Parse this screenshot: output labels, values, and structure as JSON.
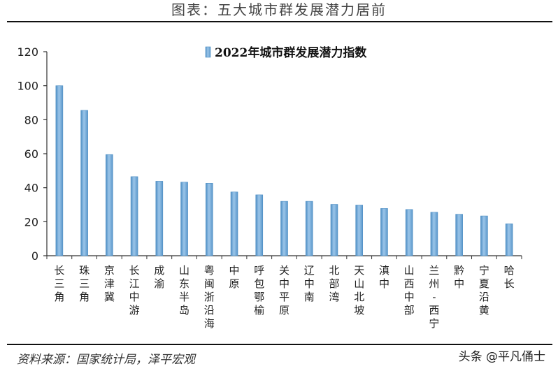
{
  "header": {
    "title": "图表：五大城市群发展潜力居前"
  },
  "footer": {
    "source": "资料来源：国家统计局，泽平宏观",
    "watermark": "头条 @平凡俑士"
  },
  "chart_data": {
    "type": "bar",
    "title": "",
    "xlabel": "",
    "ylabel": "",
    "ylim": [
      0,
      120
    ],
    "yticks": [
      0,
      20,
      40,
      60,
      80,
      100,
      120
    ],
    "legend": "top-center",
    "grid": false,
    "bar_color": "#6FA8D6",
    "categories": [
      "长三角",
      "珠三角",
      "京津冀",
      "长江中游",
      "成渝",
      "山东半岛",
      "粤闽浙沿海",
      "中原",
      "呼包鄂榆",
      "关中平原",
      "辽中南",
      "北部湾",
      "天山北坡",
      "滇中",
      "山西中部",
      "兰州-西宁",
      "黔中",
      "宁夏沿黄",
      "哈长"
    ],
    "series": [
      {
        "name": "2022年城市群发展潜力指数",
        "values": [
          100,
          85.5,
          59.5,
          46.5,
          43.8,
          43.3,
          42.6,
          37.5,
          35.8,
          32,
          32,
          30.2,
          29.8,
          27.8,
          27.2,
          25.6,
          24.4,
          23.4,
          18.8
        ]
      }
    ]
  }
}
